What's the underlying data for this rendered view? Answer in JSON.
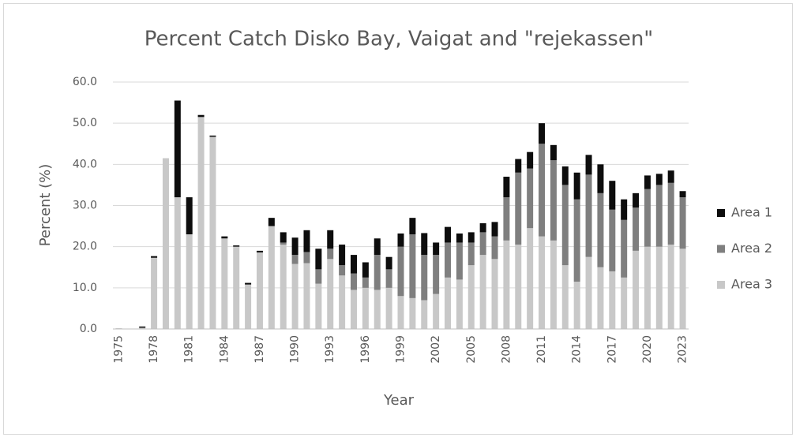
{
  "chart_data": {
    "type": "stacked_bar",
    "title": "Percent Catch Disko Bay, Vaigat and \"rejekassen\"",
    "x_label": "Year",
    "y_label": "Percent (%)",
    "categories": [
      "1975",
      null,
      null,
      "1978",
      null,
      null,
      "1981",
      null,
      null,
      "1984",
      null,
      null,
      "1987",
      null,
      null,
      "1990",
      null,
      null,
      "1993",
      null,
      null,
      "1996",
      null,
      null,
      "1999",
      null,
      null,
      "2002",
      null,
      null,
      "2005",
      null,
      null,
      "2008",
      null,
      null,
      "2011",
      null,
      null,
      "2014",
      null,
      null,
      "2017",
      null,
      null,
      "2020",
      null,
      null,
      "2023"
    ],
    "series": [
      {
        "name": "Area 1",
        "color": "#0d0d0d",
        "values": [
          0,
          0,
          0.3,
          0.4,
          0,
          23.5,
          9,
          0.5,
          0.3,
          0.5,
          0.3,
          0.4,
          0.4,
          2,
          2.5,
          4.2,
          5.3,
          5,
          4.5,
          5,
          4.5,
          3.7,
          4,
          3,
          3.2,
          4,
          5.3,
          3,
          3.8,
          2.2,
          2.5,
          2.2,
          3.5,
          5,
          3.3,
          4,
          5,
          3.7,
          4.5,
          6.5,
          4.8,
          7,
          7,
          5,
          3.5,
          3.3,
          2.7,
          3,
          1.5
        ]
      },
      {
        "name": "Area 2",
        "color": "#7f7f7f",
        "values": [
          0,
          0,
          0,
          0,
          0,
          0,
          0,
          0,
          0,
          0,
          0,
          0,
          0,
          0,
          0.5,
          2.2,
          2.7,
          3.5,
          2.5,
          2.5,
          4,
          2.5,
          8.5,
          4.5,
          12,
          15.5,
          11,
          9.5,
          8.5,
          9,
          5.5,
          5.5,
          5.5,
          10.5,
          17.5,
          14.5,
          22.5,
          19.5,
          19.5,
          20,
          20,
          18,
          15,
          14,
          10.5,
          14,
          15,
          15,
          12.5
        ]
      },
      {
        "name": "Area 3",
        "color": "#c8c8c8",
        "values": [
          0.2,
          0,
          0.3,
          17.3,
          41.5,
          32,
          23,
          51.5,
          46.7,
          22,
          20,
          10.8,
          18.6,
          25,
          20.5,
          15.8,
          16,
          11,
          17,
          13,
          9.5,
          10,
          9.5,
          10,
          8,
          7.5,
          7,
          8.5,
          12.5,
          12,
          15.5,
          18,
          17,
          21.5,
          20.5,
          24.5,
          22.5,
          21.5,
          15.5,
          11.5,
          17.5,
          15,
          14,
          12.5,
          19,
          20,
          20,
          20.5,
          19.5
        ]
      }
    ],
    "ylim": [
      0,
      60
    ],
    "yticks": [
      {
        "value": 0,
        "label": "0.0"
      },
      {
        "value": 10,
        "label": "10.0"
      },
      {
        "value": 20,
        "label": "20.0"
      },
      {
        "value": 30,
        "label": "30.0"
      },
      {
        "value": 40,
        "label": "40.0"
      },
      {
        "value": 50,
        "label": "50.0"
      },
      {
        "value": 60,
        "label": "60.0"
      }
    ],
    "grid": true,
    "legend": "right"
  }
}
